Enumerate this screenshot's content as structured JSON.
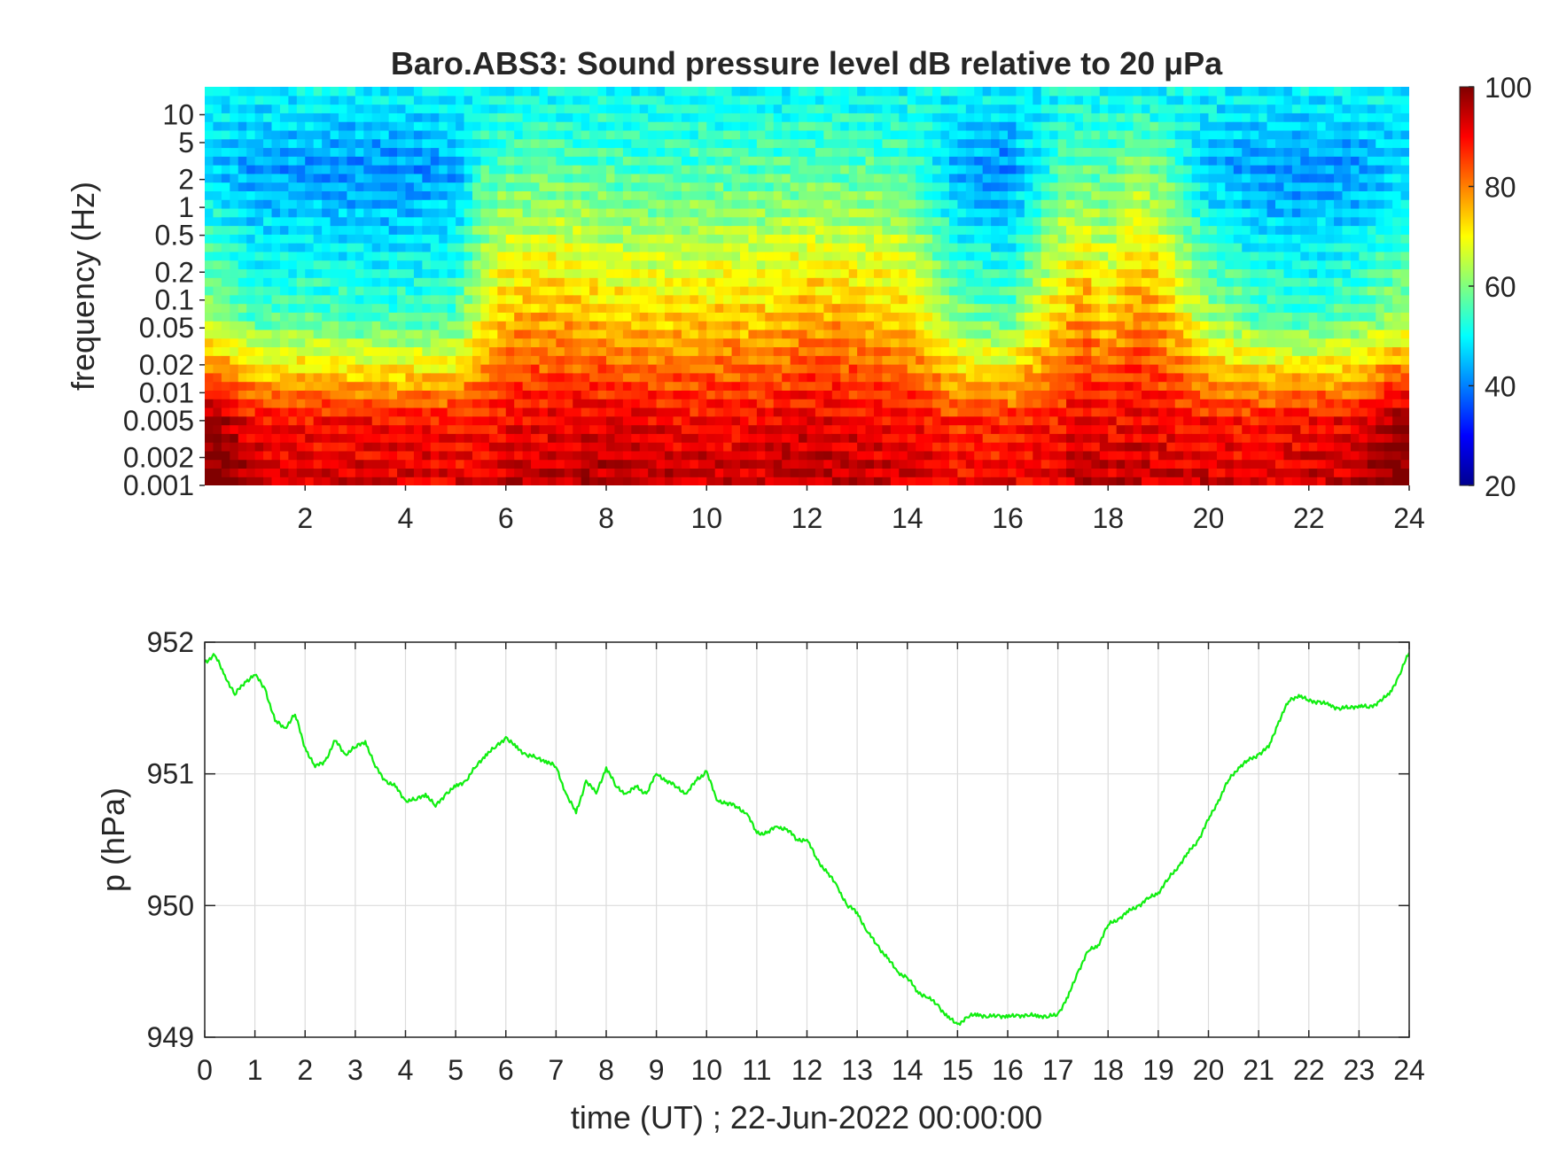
{
  "chart_data": [
    {
      "type": "heatmap",
      "title": "Baro.ABS3: Sound pressure level dB relative to 20 μPa",
      "ylabel": "frequency (Hz)",
      "xlabel": "",
      "x_ticks": [
        "2",
        "4",
        "6",
        "8",
        "10",
        "12",
        "14",
        "16",
        "18",
        "20",
        "22",
        "24"
      ],
      "y_ticks": [
        "10",
        "5",
        "2",
        "1",
        "0.5",
        "0.2",
        "0.1",
        "0.05",
        "0.02",
        "0.01",
        "0.005",
        "0.002",
        "0.001"
      ],
      "xlim": [
        0,
        24
      ],
      "ylim": [
        0.001,
        20
      ],
      "yscale": "log",
      "colormap": "jet",
      "colorbar": {
        "ticks": [
          "100",
          "80",
          "60",
          "40",
          "20"
        ],
        "range": [
          20,
          100
        ]
      },
      "x": [
        0.25,
        1,
        2,
        3,
        4,
        5,
        5.5,
        6,
        7,
        8,
        9,
        10,
        11,
        12,
        13,
        14,
        15,
        16,
        17,
        17.5,
        18,
        18.5,
        19,
        20,
        21,
        22,
        23,
        23.75
      ],
      "low_freq_level_db": [
        98,
        90,
        89,
        89,
        89,
        88,
        88,
        90,
        91,
        92,
        91,
        90,
        90,
        92,
        91,
        90,
        86,
        87,
        89,
        91,
        90,
        91,
        90,
        89,
        88,
        90,
        91,
        98
      ],
      "mid_freq_level_db": [
        62,
        56,
        57,
        55,
        55,
        56,
        68,
        76,
        77,
        74,
        73,
        74,
        74,
        77,
        76,
        74,
        60,
        57,
        74,
        80,
        73,
        81,
        78,
        63,
        57,
        55,
        58,
        62
      ],
      "high_freq_level_db": [
        46,
        42,
        42,
        41,
        41,
        43,
        54,
        57,
        57,
        56,
        55,
        56,
        56,
        57,
        57,
        56,
        44,
        40,
        56,
        58,
        55,
        61,
        59,
        45,
        42,
        41,
        42,
        46
      ],
      "top_band_level_db": 50
    },
    {
      "type": "line",
      "title": "",
      "xlabel": "time (UT) ; 22-Jun-2022 00:00:00",
      "ylabel": "p (hPa)",
      "xlim": [
        0,
        24
      ],
      "ylim": [
        949,
        952
      ],
      "grid": true,
      "x_ticks": [
        "0",
        "1",
        "2",
        "3",
        "4",
        "5",
        "6",
        "7",
        "8",
        "9",
        "10",
        "11",
        "12",
        "13",
        "14",
        "15",
        "16",
        "17",
        "18",
        "19",
        "20",
        "21",
        "22",
        "23",
        "24"
      ],
      "y_ticks": [
        "949",
        "950",
        "951",
        "952"
      ],
      "color": "#11ee11",
      "x": [
        0,
        0.2,
        0.4,
        0.6,
        0.8,
        1.0,
        1.2,
        1.4,
        1.6,
        1.8,
        2.0,
        2.2,
        2.4,
        2.6,
        2.8,
        3.0,
        3.2,
        3.4,
        3.6,
        3.8,
        4.0,
        4.2,
        4.4,
        4.6,
        4.8,
        5.0,
        5.2,
        5.4,
        5.6,
        5.8,
        6.0,
        6.2,
        6.4,
        6.6,
        6.8,
        7.0,
        7.2,
        7.4,
        7.6,
        7.8,
        8.0,
        8.2,
        8.4,
        8.6,
        8.8,
        9.0,
        9.2,
        9.4,
        9.6,
        9.8,
        10.0,
        10.2,
        10.4,
        10.6,
        10.8,
        11.0,
        11.2,
        11.4,
        11.6,
        11.8,
        12.0,
        12.2,
        12.4,
        12.6,
        12.8,
        13.0,
        13.2,
        13.4,
        13.6,
        13.8,
        14.0,
        14.2,
        14.4,
        14.6,
        14.8,
        15.0,
        15.2,
        15.4,
        15.6,
        15.8,
        16.0,
        16.2,
        16.4,
        16.6,
        16.8,
        17.0,
        17.2,
        17.4,
        17.6,
        17.8,
        18.0,
        18.2,
        18.4,
        18.6,
        18.8,
        19.0,
        19.2,
        19.4,
        19.6,
        19.8,
        20.0,
        20.2,
        20.4,
        20.6,
        20.8,
        21.0,
        21.2,
        21.4,
        21.6,
        21.8,
        22.0,
        22.2,
        22.4,
        22.6,
        22.8,
        23.0,
        23.2,
        23.4,
        23.6,
        23.8,
        24.0
      ],
      "values": [
        951.85,
        951.9,
        951.75,
        951.6,
        951.7,
        951.75,
        951.65,
        951.4,
        951.35,
        951.45,
        951.2,
        951.05,
        951.1,
        951.25,
        951.15,
        951.2,
        951.25,
        951.05,
        950.95,
        950.9,
        950.8,
        950.8,
        950.85,
        950.75,
        950.85,
        950.9,
        950.95,
        951.05,
        951.15,
        951.2,
        951.28,
        951.2,
        951.15,
        951.12,
        951.1,
        951.05,
        950.85,
        950.7,
        950.95,
        950.85,
        951.05,
        950.9,
        950.85,
        950.9,
        950.85,
        951.0,
        950.95,
        950.9,
        950.85,
        950.95,
        951.02,
        950.8,
        950.78,
        950.75,
        950.7,
        950.55,
        950.55,
        950.6,
        950.58,
        950.5,
        950.5,
        950.35,
        950.25,
        950.15,
        950.0,
        949.95,
        949.8,
        949.7,
        949.6,
        949.5,
        949.45,
        949.35,
        949.3,
        949.25,
        949.15,
        949.1,
        949.15,
        949.18,
        949.15,
        949.17,
        949.15,
        949.17,
        949.16,
        949.17,
        949.15,
        949.18,
        949.3,
        949.5,
        949.65,
        949.7,
        949.85,
        949.9,
        949.95,
        950.0,
        950.05,
        950.1,
        950.2,
        950.3,
        950.4,
        950.5,
        950.65,
        950.8,
        950.95,
        951.05,
        951.1,
        951.15,
        951.2,
        951.4,
        951.55,
        951.6,
        951.55,
        951.55,
        951.52,
        951.5,
        951.5,
        951.52,
        951.5,
        951.55,
        951.6,
        951.75,
        951.92
      ]
    }
  ]
}
